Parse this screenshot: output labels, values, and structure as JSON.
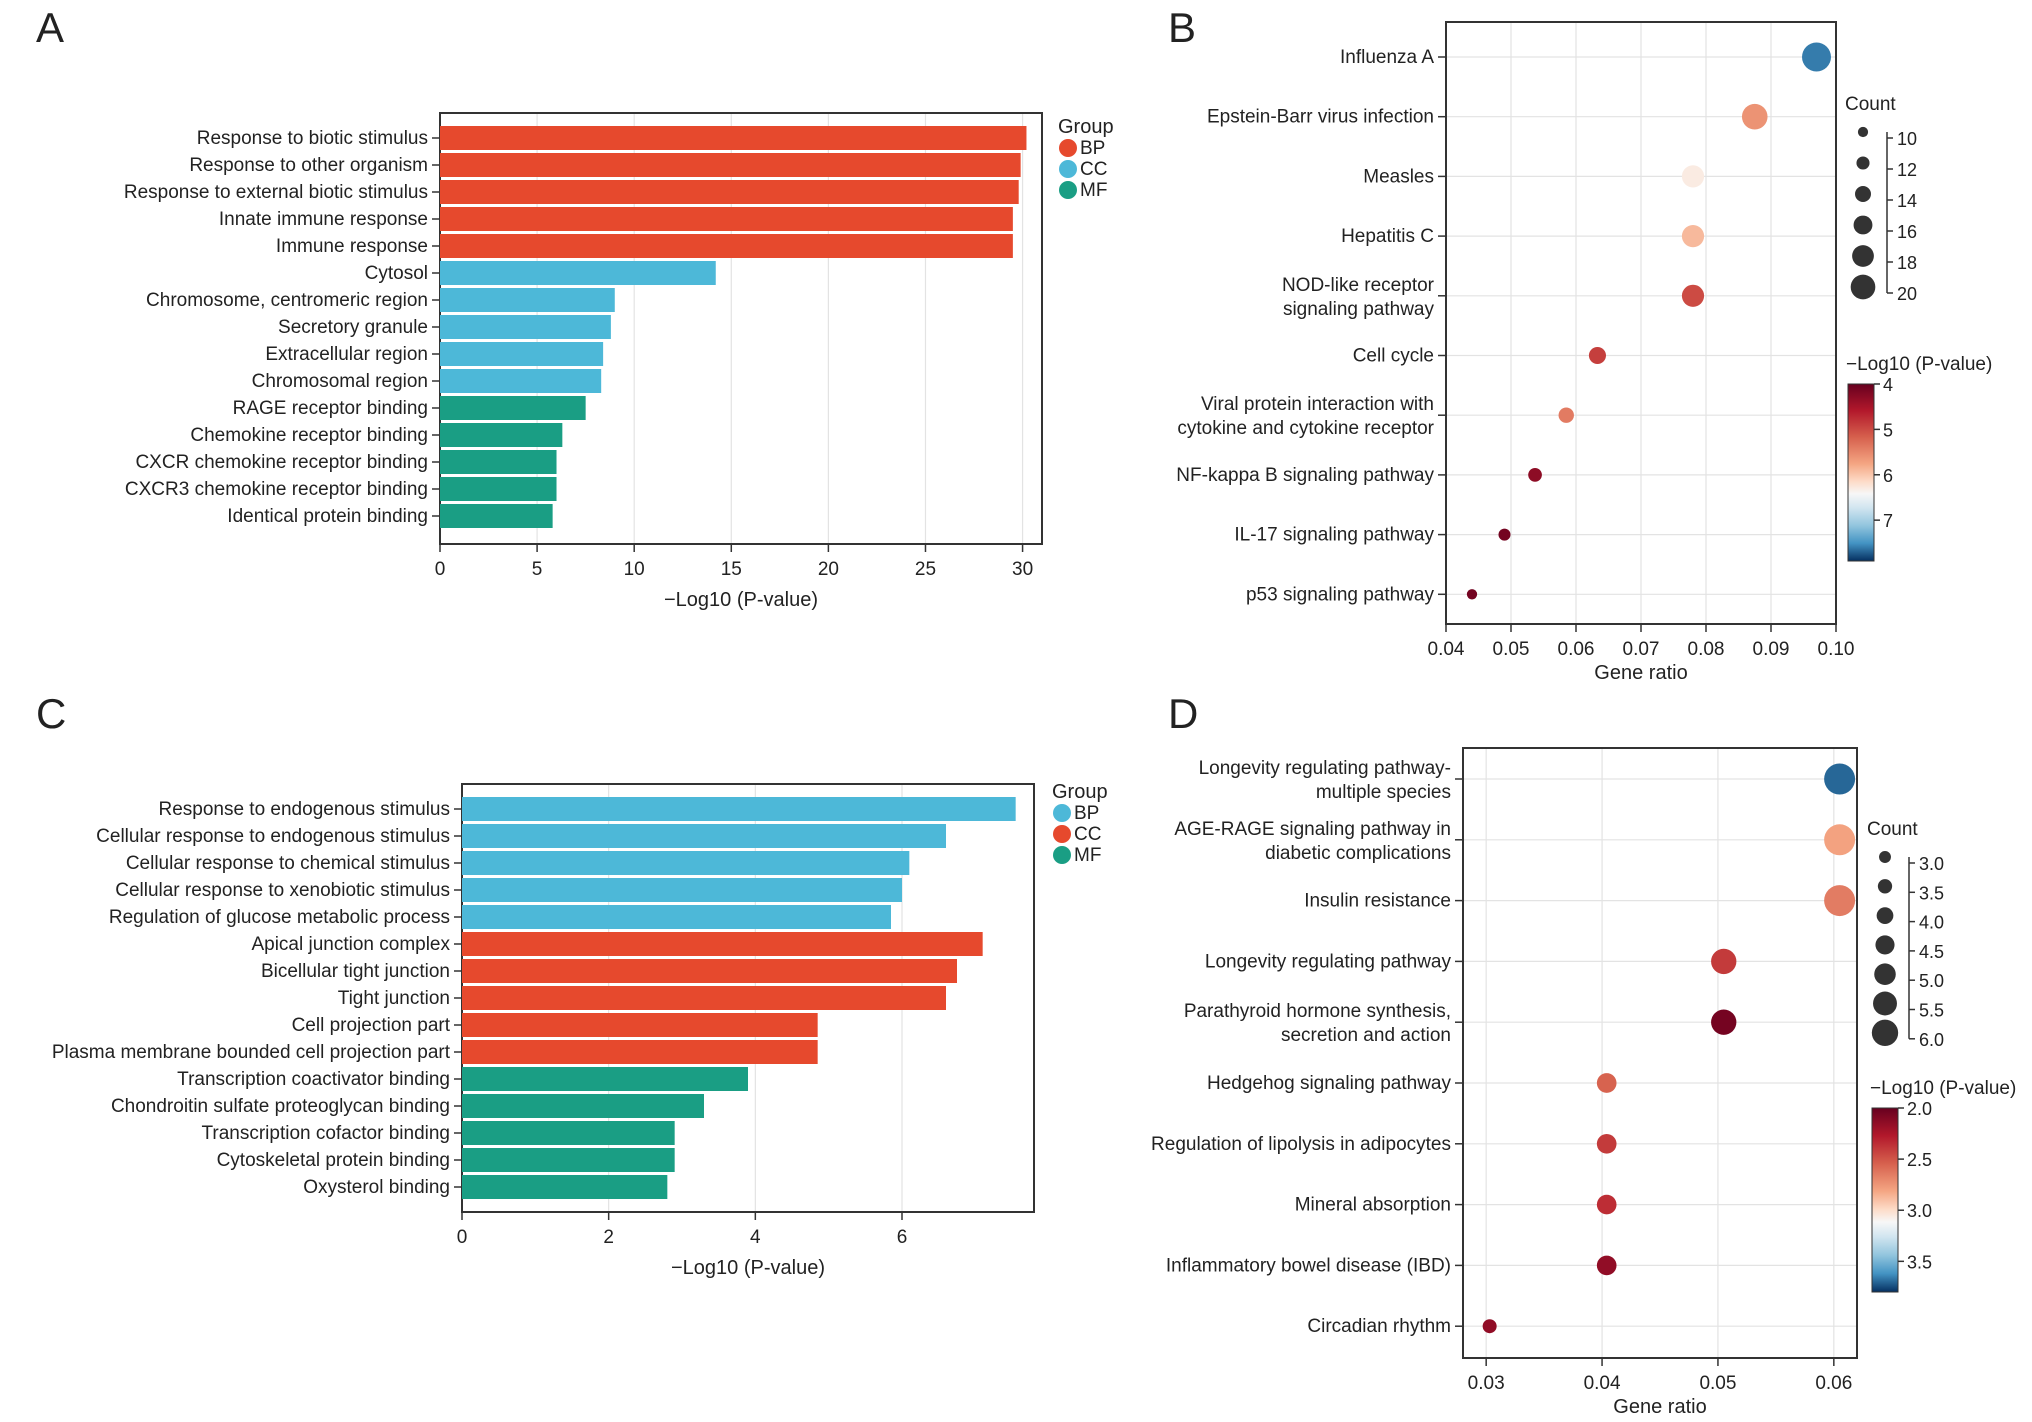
{
  "panel_letters": {
    "A": "A",
    "B": "B",
    "C": "C",
    "D": "D"
  },
  "colors": {
    "BP": "#e6492d",
    "CC": "#4db8d8",
    "MF": "#1a9e84",
    "C_BP": "#4db8d8",
    "C_CC": "#e6492d",
    "C_MF": "#1a9e84",
    "grid": "#e3e3e3",
    "frame": "#333333"
  },
  "chart_data": [
    {
      "id": "A",
      "type": "bar",
      "orientation": "horizontal",
      "xlabel": "−Log10 (P-value)",
      "xlim": [
        0,
        31
      ],
      "xticks": [
        0,
        5,
        10,
        15,
        20,
        25,
        30
      ],
      "legend": {
        "title": "Group",
        "entries": [
          "BP",
          "CC",
          "MF"
        ],
        "placement": "right"
      },
      "categories": [
        "Response to biotic stimulus",
        "Response to other organism",
        "Response to external biotic stimulus",
        "Innate immune response",
        "Immune response",
        "Cytosol",
        "Chromosome, centromeric region",
        "Secretory granule",
        "Extracellular region",
        "Chromosomal region",
        "RAGE receptor binding",
        "Chemokine receptor binding",
        "CXCR chemokine receptor binding",
        "CXCR3 chemokine receptor binding",
        "Identical protein binding"
      ],
      "values": [
        30.2,
        29.9,
        29.8,
        29.5,
        29.5,
        14.2,
        9.0,
        8.8,
        8.4,
        8.3,
        7.5,
        6.3,
        6.0,
        6.0,
        5.8
      ],
      "groups": [
        "BP",
        "BP",
        "BP",
        "BP",
        "BP",
        "CC",
        "CC",
        "CC",
        "CC",
        "CC",
        "MF",
        "MF",
        "MF",
        "MF",
        "MF"
      ]
    },
    {
      "id": "B",
      "type": "scatter",
      "xlabel": "Gene ratio",
      "xlim": [
        0.04,
        0.1
      ],
      "xticks": [
        0.04,
        0.05,
        0.06,
        0.07,
        0.08,
        0.09,
        0.1
      ],
      "xtick_labels": [
        "0.04",
        "0.05",
        "0.06",
        "0.07",
        "0.08",
        "0.09",
        "0.10"
      ],
      "size_legend": {
        "title": "Count",
        "values": [
          10,
          12,
          14,
          16,
          18,
          20
        ]
      },
      "color_legend": {
        "title": "−Log10 (P-value)",
        "min": 4,
        "max": 7.9,
        "ticks": [
          4,
          5,
          6,
          7
        ]
      },
      "categories": [
        [
          "Influenza A"
        ],
        [
          "Epstein-Barr virus infection"
        ],
        [
          "Measles"
        ],
        [
          "Hepatitis C"
        ],
        [
          "NOD-like receptor",
          "signaling pathway"
        ],
        [
          "Cell cycle"
        ],
        [
          "Viral protein interaction with",
          "cytokine and cytokine receptor"
        ],
        [
          "NF-kappa B signaling pathway"
        ],
        [
          "IL-17 signaling pathway"
        ],
        [
          "p53 signaling pathway"
        ]
      ],
      "x": [
        0.097,
        0.0875,
        0.078,
        0.078,
        0.078,
        0.0633,
        0.0585,
        0.0537,
        0.049,
        0.044
      ],
      "count": [
        20,
        18,
        16,
        16,
        16,
        13,
        12,
        11,
        10,
        9
      ],
      "color_value": [
        7.6,
        5.6,
        6.3,
        5.9,
        5.0,
        4.9,
        5.4,
        4.3,
        4.1,
        4.1
      ]
    },
    {
      "id": "C",
      "type": "bar",
      "orientation": "horizontal",
      "xlabel": "−Log10 (P-value)",
      "xlim": [
        0,
        7.8
      ],
      "xticks": [
        0,
        2,
        4,
        6
      ],
      "legend": {
        "title": "Group",
        "entries": [
          "BP",
          "CC",
          "MF"
        ],
        "placement": "right"
      },
      "categories": [
        "Response to endogenous stimulus",
        "Cellular response to endogenous stimulus",
        "Cellular response to chemical stimulus",
        "Cellular response to xenobiotic stimulus",
        "Regulation of glucose metabolic process",
        "Apical junction complex",
        "Bicellular tight junction",
        "Tight junction",
        "Cell projection part",
        "Plasma membrane bounded cell projection part",
        "Transcription coactivator binding",
        "Chondroitin sulfate proteoglycan binding",
        "Transcription cofactor binding",
        "Cytoskeletal protein binding",
        "Oxysterol binding"
      ],
      "values": [
        7.55,
        6.6,
        6.1,
        6.0,
        5.85,
        7.1,
        6.75,
        6.6,
        4.85,
        4.85,
        3.9,
        3.3,
        2.9,
        2.9,
        2.8
      ],
      "groups": [
        "BP",
        "BP",
        "BP",
        "BP",
        "BP",
        "CC",
        "CC",
        "CC",
        "CC",
        "CC",
        "MF",
        "MF",
        "MF",
        "MF",
        "MF"
      ]
    },
    {
      "id": "D",
      "type": "scatter",
      "xlabel": "Gene ratio",
      "xlim": [
        0.028,
        0.062
      ],
      "xticks": [
        0.03,
        0.04,
        0.05,
        0.06
      ],
      "xtick_labels": [
        "0.03",
        "0.04",
        "0.05",
        "0.06"
      ],
      "size_legend": {
        "title": "Count",
        "values": [
          "3.0",
          "3.5",
          "4.0",
          "4.5",
          "5.0",
          "5.5",
          "6.0"
        ]
      },
      "color_legend": {
        "title": "−Log10 (P-value)",
        "min": 2.0,
        "max": 3.8,
        "ticks": [
          "2.0",
          "2.5",
          "3.0",
          "3.5"
        ]
      },
      "categories": [
        [
          "Longevity regulating pathway-",
          "multiple species"
        ],
        [
          "AGE-RAGE signaling pathway in",
          "diabetic complications"
        ],
        [
          "Insulin resistance"
        ],
        [
          "Longevity regulating pathway"
        ],
        [
          "Parathyroid hormone synthesis,",
          "secretion and action"
        ],
        [
          "Hedgehog signaling pathway"
        ],
        [
          "Regulation of lipolysis in adipocytes"
        ],
        [
          "Mineral absorption"
        ],
        [
          "Inflammatory bowel disease (IBD)"
        ],
        [
          "Circadian rhythm"
        ]
      ],
      "x": [
        0.0605,
        0.0605,
        0.0605,
        0.0505,
        0.0505,
        0.0404,
        0.0404,
        0.0404,
        0.0404,
        0.0303
      ],
      "count": [
        6,
        6,
        6,
        5,
        5,
        4,
        4,
        4,
        4,
        3
      ],
      "color_value": [
        3.7,
        2.8,
        2.65,
        2.4,
        2.05,
        2.55,
        2.4,
        2.35,
        2.15,
        2.15
      ]
    }
  ]
}
